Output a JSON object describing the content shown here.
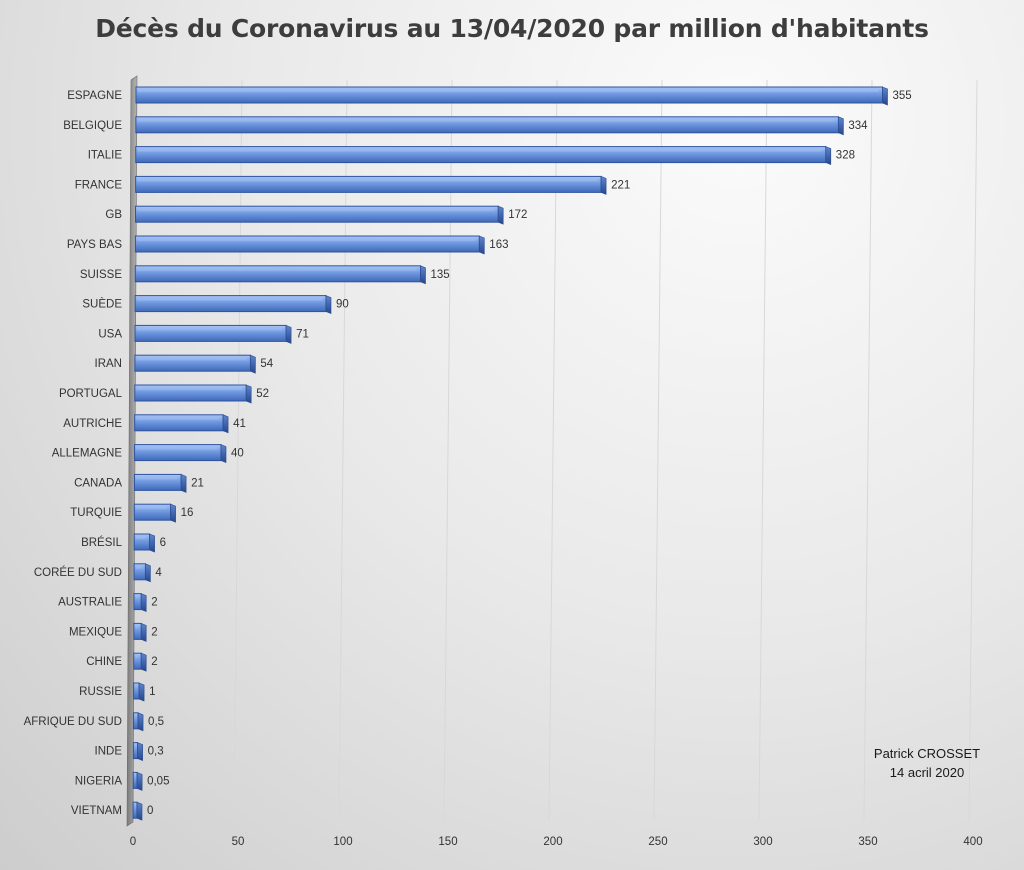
{
  "chart_data": {
    "type": "bar",
    "orientation": "horizontal",
    "title": "Décès du Coronavirus au 13/04/2020 par million d'habitants",
    "categories": [
      "ESPAGNE",
      "BELGIQUE",
      "ITALIE",
      "FRANCE",
      "GB",
      "PAYS BAS",
      "SUISSE",
      "SUÈDE",
      "USA",
      "IRAN",
      "PORTUGAL",
      "AUTRICHE",
      "ALLEMAGNE",
      "CANADA",
      "TURQUIE",
      "BRÉSIL",
      "CORÉE DU SUD",
      "AUSTRALIE",
      "MEXIQUE",
      "CHINE",
      "RUSSIE",
      "AFRIQUE DU SUD",
      "INDE",
      "NIGERIA",
      "VIETNAM"
    ],
    "values": [
      355,
      334,
      328,
      221,
      172,
      163,
      135,
      90,
      71,
      54,
      52,
      41,
      40,
      21,
      16,
      6,
      4,
      2,
      2,
      2,
      1,
      0.5,
      0.3,
      0.05,
      0
    ],
    "data_labels": [
      "355",
      "334",
      "328",
      "221",
      "172",
      "163",
      "135",
      "90",
      "71",
      "54",
      "52",
      "41",
      "40",
      "21",
      "16",
      "6",
      "4",
      "2",
      "2",
      "2",
      "1",
      "0,5",
      "0,3",
      "0,05",
      "0"
    ],
    "x_ticks": [
      "0",
      "50",
      "100",
      "150",
      "200",
      "250",
      "300",
      "350",
      "400"
    ],
    "xlim": [
      0,
      400
    ],
    "xlabel": "",
    "ylabel": "",
    "grid": "vertical",
    "legend": "none",
    "bar_color": "#4f7fd0",
    "bar_edge_color": "#2f54a0",
    "bar_highlight_color": "#9fbdf3"
  },
  "annotation": {
    "line1": "Patrick CROSSET",
    "line2": "14 acril 2020"
  }
}
